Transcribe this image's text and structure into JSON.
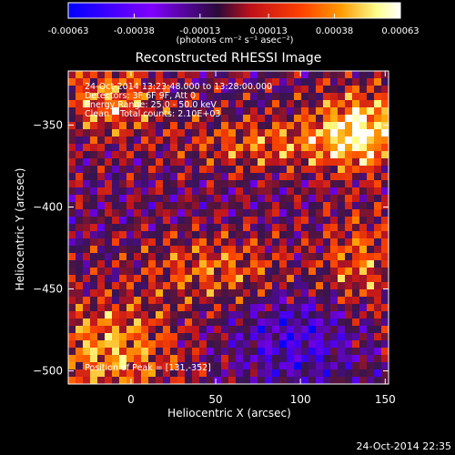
{
  "chart_data": {
    "type": "heatmap",
    "title": "Reconstructed RHESSI Image",
    "xlabel": "Heliocentric X (arcsec)",
    "ylabel": "Heliocentric Y (arcsec)",
    "xlim": [
      -37,
      152
    ],
    "ylim": [
      -508,
      -317
    ],
    "xticks": [
      0,
      50,
      100,
      150
    ],
    "yticks": [
      -350,
      -400,
      -450,
      -500
    ],
    "annotations": [
      "24-Oct-2014 13:23:48.000 to 13:28:00.000",
      "Detectors: 3F 6F 9F, Att 0",
      "Energy Range: 25.0 - 50.0 keV",
      "Clean    Total counts: 2.10E+03"
    ],
    "peak_label": "Position of Peak = [131,-352]",
    "peak": [
      131,
      -352
    ],
    "colorbar": {
      "range": [
        -0.00063,
        0.00063
      ],
      "tick_values": [
        -0.00063,
        -0.00038,
        -0.00013,
        0.00013,
        0.00038,
        0.00063
      ],
      "tick_labels": [
        "-0.00063",
        "-0.00038",
        "-0.00013",
        "0.00013",
        "0.00038",
        "0.00063"
      ],
      "unit_label": "(photons cm⁻² s⁻¹ asec⁻²)",
      "colors": [
        "#0000ff",
        "#8000ff",
        "#2a0a3a",
        "#c0101a",
        "#ff4000",
        "#ff9a00",
        "#ffff90",
        "#ffffff"
      ]
    }
  },
  "footer": {
    "timestamp": "24-Oct-2014 22:35"
  }
}
